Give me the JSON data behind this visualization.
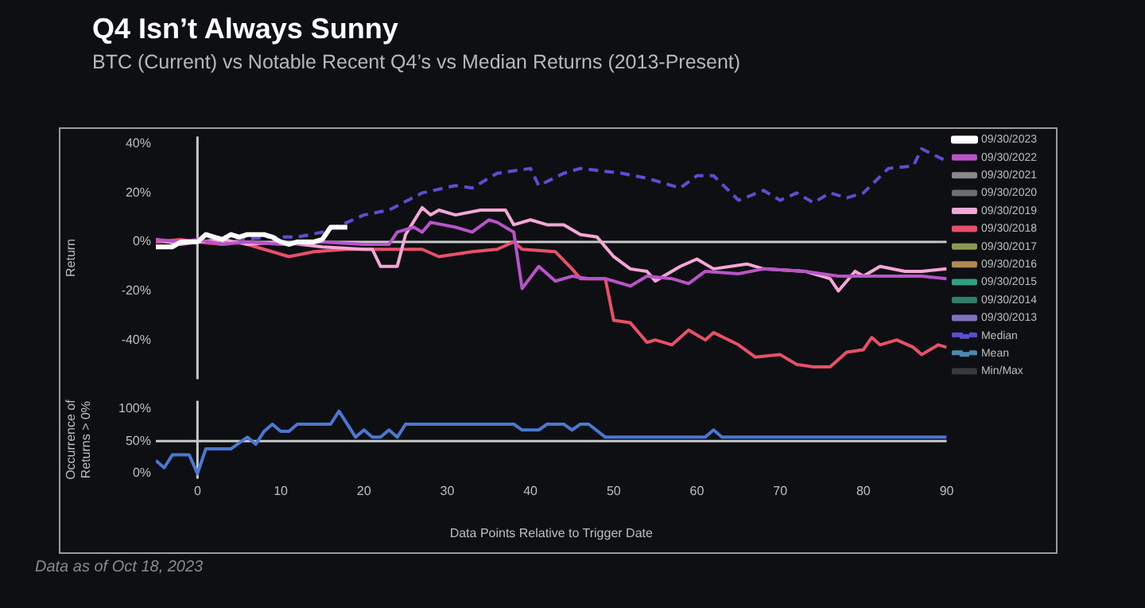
{
  "chart_data": [
    {
      "type": "line",
      "title": "Q4 Isn’t Always Sunny",
      "subtitle": "BTC (Current) vs Notable Recent Q4’s vs Median Returns (2013-Present)",
      "ylabel": "Return",
      "xlim": [
        -5,
        90
      ],
      "ylim": [
        -56,
        43
      ],
      "yticks": [
        {
          "value": 40,
          "label": "40%"
        },
        {
          "value": 20,
          "label": "20%"
        },
        {
          "value": 0,
          "label": "0%"
        },
        {
          "value": -20,
          "label": "-20%"
        },
        {
          "value": -40,
          "label": "-40%"
        }
      ],
      "tick_labels": "y",
      "grid": false,
      "legend": "right",
      "marker": "none",
      "ref_lines": [
        {
          "axis": "y",
          "value": 0,
          "color": "#c8c8c8"
        },
        {
          "axis": "x",
          "value": 0,
          "color": "#c8c8c8"
        }
      ],
      "series": [
        {
          "name": "09/30/2023",
          "color": "#ffffff",
          "x": [
            -5,
            -4,
            -3,
            -2,
            -1,
            0,
            1,
            2,
            3,
            4,
            5,
            6,
            7,
            8,
            9,
            10,
            11,
            12,
            13,
            14,
            15,
            16,
            17,
            18
          ],
          "values": [
            -2,
            -2,
            -2,
            0,
            0,
            0,
            3,
            2,
            1,
            3,
            2,
            3,
            3,
            3,
            2,
            0,
            -1,
            0,
            0,
            0,
            1,
            6,
            6,
            6
          ]
        },
        {
          "name": "09/30/2022",
          "color": "#b854c8",
          "x": [
            -5,
            -2,
            0,
            3,
            6,
            10,
            15,
            20,
            23,
            24,
            26,
            27,
            28,
            31,
            33,
            35,
            36,
            38,
            39,
            41,
            43,
            45,
            47,
            49,
            52,
            54,
            57,
            59,
            61,
            65,
            68,
            73,
            77,
            81,
            87,
            90
          ],
          "values": [
            1,
            0,
            1,
            -1,
            0,
            -1,
            0,
            -1,
            -1,
            4,
            6,
            4,
            8,
            6,
            4,
            9,
            8,
            4,
            -19,
            -10,
            -16,
            -14,
            -15,
            -15,
            -18,
            -14,
            -15,
            -17,
            -12,
            -13,
            -11,
            -12,
            -14,
            -14,
            -14,
            -15
          ]
        },
        {
          "name": "09/30/2021",
          "color": "#8a8a8a"
        },
        {
          "name": "09/30/2020",
          "color": "#6e6e6e"
        },
        {
          "name": "09/30/2019",
          "color": "#f4a6d7",
          "x": [
            -5,
            -2,
            0,
            3,
            6,
            10,
            15,
            20,
            21,
            22,
            24,
            25,
            27,
            28,
            29,
            31,
            34,
            37,
            38,
            40,
            42,
            44,
            46,
            48,
            50,
            52,
            54,
            55,
            56,
            58,
            60,
            62,
            66,
            68,
            73,
            76,
            77,
            79,
            80,
            82,
            85,
            87,
            90
          ],
          "values": [
            1,
            -1,
            0,
            1,
            -1,
            0,
            -2,
            -3,
            -3,
            -10,
            -10,
            3,
            14,
            11,
            13,
            11,
            13,
            13,
            7,
            9,
            7,
            7,
            3,
            2,
            -6,
            -11,
            -12,
            -16,
            -14,
            -10,
            -7,
            -11,
            -9,
            -11,
            -12,
            -15,
            -20,
            -12,
            -14,
            -10,
            -12,
            -12,
            -11
          ]
        },
        {
          "name": "09/30/2018",
          "color": "#e8506a",
          "x": [
            -5,
            -2,
            0,
            3,
            5,
            8,
            11,
            14,
            18,
            22,
            27,
            29,
            33,
            36,
            38,
            39,
            43,
            45,
            46,
            49,
            50,
            52,
            54,
            55,
            57,
            59,
            61,
            62,
            65,
            67,
            70,
            72,
            74,
            76,
            78,
            80,
            81,
            82,
            84,
            86,
            87,
            89,
            90
          ],
          "values": [
            0,
            1,
            0,
            -1,
            0,
            -3,
            -6,
            -4,
            -3,
            -3,
            -3,
            -6,
            -4,
            -3,
            0,
            -3,
            -4,
            -11,
            -15,
            -15,
            -32,
            -33,
            -41,
            -40,
            -42,
            -36,
            -40,
            -37,
            -42,
            -47,
            -46,
            -50,
            -51,
            -51,
            -45,
            -44,
            -39,
            -42,
            -40,
            -43,
            -46,
            -42,
            -43
          ]
        },
        {
          "name": "09/30/2017",
          "color": "#8a9a50"
        },
        {
          "name": "09/30/2016",
          "color": "#b08a50"
        },
        {
          "name": "09/30/2015",
          "color": "#30a080"
        },
        {
          "name": "09/30/2014",
          "color": "#2f7f6a"
        },
        {
          "name": "09/30/2013",
          "color": "#8070c0"
        },
        {
          "name": "Median",
          "color": "#5a4fd0",
          "line_style": "dashed",
          "x": [
            -5,
            0,
            5,
            9,
            12,
            15,
            18,
            20,
            23,
            27,
            31,
            33,
            36,
            40,
            41,
            44,
            46,
            51,
            54,
            58,
            60,
            62,
            65,
            68,
            70,
            72,
            74,
            76,
            78,
            80,
            83,
            86,
            87,
            90
          ],
          "values": [
            0,
            0,
            1,
            2,
            2,
            4,
            8,
            11,
            13,
            20,
            23,
            22,
            28,
            30,
            23,
            28,
            30,
            28,
            26,
            22,
            27,
            27,
            17,
            21,
            17,
            20,
            16,
            20,
            18,
            20,
            30,
            31,
            38,
            33
          ]
        },
        {
          "name": "Mean",
          "color": "#4a8ab0",
          "line_style": "dashed"
        },
        {
          "name": "Min/Max",
          "color": "#3a3a3a"
        }
      ]
    },
    {
      "type": "line",
      "ylabel": "Occurrence of Returns > 0%",
      "xlabel": "Data Points Relative to Trigger Date",
      "xlim": [
        -5,
        90
      ],
      "ylim": [
        -8,
        112
      ],
      "xticks": [
        0,
        10,
        20,
        30,
        40,
        50,
        60,
        70,
        80,
        90
      ],
      "yticks": [
        {
          "value": 0,
          "label": "0%"
        },
        {
          "value": 50,
          "label": "50%"
        },
        {
          "value": 100,
          "label": "100%"
        }
      ],
      "grid": false,
      "marker": "none",
      "ref_lines": [
        {
          "axis": "y",
          "value": 50,
          "color": "#c8c8c8"
        },
        {
          "axis": "x",
          "value": 0,
          "color": "#c8c8c8"
        }
      ],
      "annotations": [
        "Data as of Oct 18, 2023"
      ],
      "series": [
        {
          "color": "#4a78d0",
          "x": [
            -5,
            -4,
            -3,
            -1,
            0,
            1,
            4,
            6,
            7,
            8,
            9,
            10,
            11,
            12,
            16,
            17,
            19,
            20,
            21,
            22,
            23,
            24,
            25,
            38,
            39,
            41,
            42,
            44,
            45,
            46,
            47,
            49,
            61,
            62,
            63,
            90
          ],
          "values": [
            20,
            9,
            29,
            29,
            0,
            38,
            38,
            56,
            45,
            65,
            76,
            65,
            65,
            76,
            76,
            96,
            56,
            67,
            56,
            56,
            67,
            56,
            76,
            76,
            67,
            67,
            76,
            76,
            67,
            76,
            76,
            56,
            56,
            67,
            56,
            56
          ]
        }
      ]
    }
  ]
}
